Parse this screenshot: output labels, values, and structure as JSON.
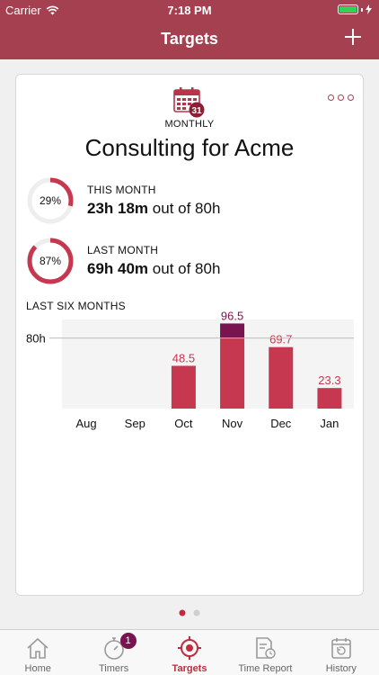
{
  "status_bar": {
    "carrier": "Carrier",
    "time": "7:18 PM"
  },
  "nav": {
    "title": "Targets",
    "add_icon": "plus-icon"
  },
  "card": {
    "calendar_day": "31",
    "period": "MONTHLY",
    "title": "Consulting for Acme",
    "this_month": {
      "label": "THIS MONTH",
      "percent_text": "29%",
      "percent": 29,
      "hours": "23h 18m",
      "out_of": "out of 80h"
    },
    "last_month": {
      "label": "LAST MONTH",
      "percent_text": "87%",
      "percent": 87,
      "hours": "69h 40m",
      "out_of": "out of 80h"
    },
    "chart_label": "LAST SIX MONTHS"
  },
  "colors": {
    "brand": "#a4404f",
    "bar": "#c6384f",
    "bar_over": "#7a1450",
    "ring_track": "#eeeeee",
    "active_tab": "#c12b3f"
  },
  "chart_data": {
    "type": "bar",
    "categories": [
      "Aug",
      "Sep",
      "Oct",
      "Nov",
      "Dec",
      "Jan"
    ],
    "values": [
      0,
      0,
      48.5,
      96.5,
      69.7,
      23.3
    ],
    "labels": [
      "",
      "",
      "48.5",
      "96.5",
      "69.7",
      "23.3"
    ],
    "target": 80,
    "target_label": "80h",
    "ylim": [
      0,
      100
    ]
  },
  "page_indicator": {
    "count": 2,
    "active": 0
  },
  "tabs": [
    {
      "label": "Home",
      "icon": "home-icon",
      "active": false
    },
    {
      "label": "Timers",
      "icon": "stopwatch-icon",
      "badge": "1",
      "active": false
    },
    {
      "label": "Targets",
      "icon": "target-icon",
      "active": true
    },
    {
      "label": "Time Report",
      "icon": "report-icon",
      "active": false
    },
    {
      "label": "History",
      "icon": "history-icon",
      "active": false
    }
  ]
}
